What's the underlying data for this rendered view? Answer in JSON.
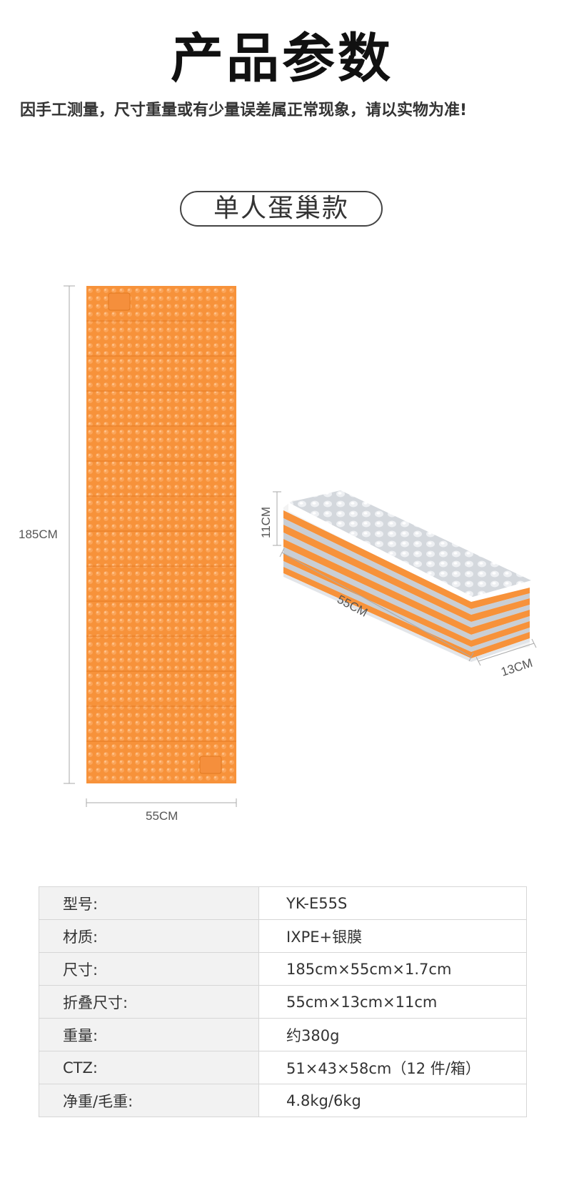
{
  "header": {
    "title": "产品参数",
    "notice": "因手工测量，尺寸重量或有少量误差属正常现象，请以实物为准!"
  },
  "variant_label": "单人蛋巢款",
  "figure": {
    "flat_length": "185CM",
    "flat_width": "55CM",
    "folded_height": "11CM",
    "folded_length": "55CM",
    "folded_depth": "13CM",
    "colors": {
      "orange": "#f7923a",
      "silver": "#d9dde2"
    }
  },
  "specs": [
    {
      "label": "型号:",
      "value": "YK-E55S"
    },
    {
      "label": "材质:",
      "value": "IXPE+银膜"
    },
    {
      "label": "尺寸:",
      "value": "185cm×55cm×1.7cm"
    },
    {
      "label": "折叠尺寸:",
      "value": "55cm×13cm×11cm"
    },
    {
      "label": "重量:",
      "value": "约380g"
    },
    {
      "label": "CTZ:",
      "value": "51×43×58cm（12 件/箱）"
    },
    {
      "label": "净重/毛重:",
      "value": "4.8kg/6kg"
    }
  ]
}
